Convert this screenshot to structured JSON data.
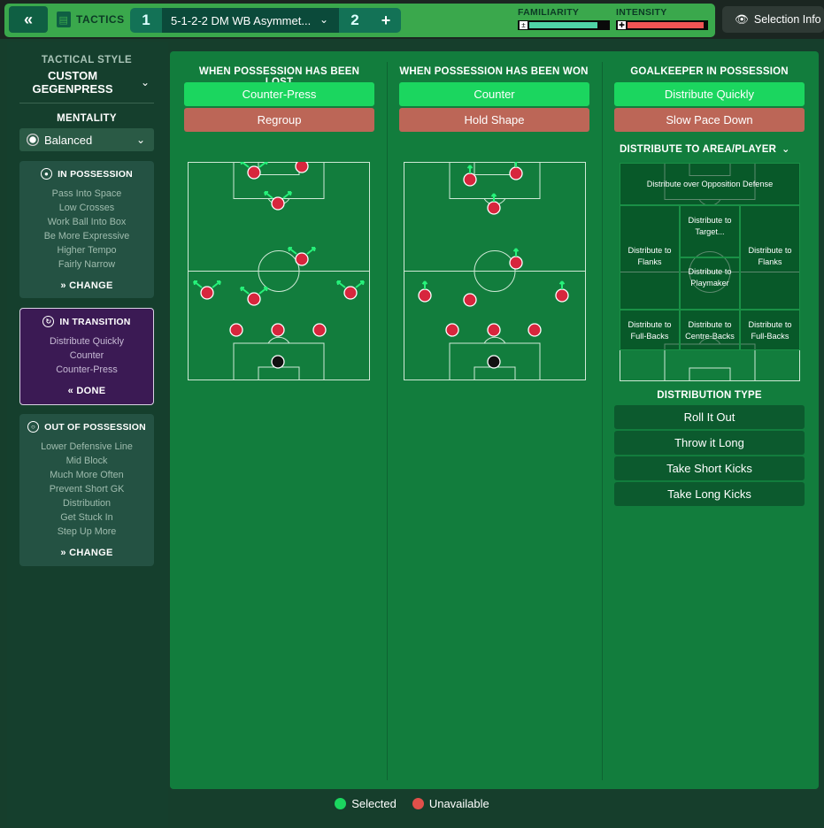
{
  "header": {
    "back_label": "«",
    "section_label": "TACTICS",
    "tab1": "1",
    "tactic_name": "5-1-2-2 DM WB Asymmet...",
    "tab2": "2",
    "add_label": "+",
    "familiarity_label": "FAMILIARITY",
    "intensity_label": "INTENSITY",
    "familiarity_level": 0.85,
    "intensity_level": 0.95,
    "selection_info": "Selection Info"
  },
  "sidebar": {
    "style_title": "TACTICAL STYLE",
    "style_name": "CUSTOM GEGENPRESS",
    "mentality_label": "MENTALITY",
    "mentality_value": "Balanced",
    "in_possession": {
      "title": "IN POSSESSION",
      "items": [
        "Pass Into Space",
        "Low Crosses",
        "Work Ball Into Box",
        "Be More Expressive",
        "Higher Tempo",
        "Fairly Narrow"
      ],
      "button": "CHANGE"
    },
    "in_transition": {
      "title": "IN TRANSITION",
      "items": [
        "Distribute Quickly",
        "Counter",
        "Counter-Press"
      ],
      "button": "DONE"
    },
    "out_of_possession": {
      "title": "OUT OF POSSESSION",
      "items": [
        "Lower Defensive Line",
        "Mid Block",
        "Much More Often",
        "Prevent Short GK",
        "Distribution",
        "Get Stuck In",
        "Step Up More"
      ],
      "button": "CHANGE"
    }
  },
  "lost": {
    "title": "WHEN POSSESSION HAS BEEN LOST",
    "opt1": "Counter-Press",
    "opt2": "Regroup"
  },
  "won": {
    "title": "WHEN POSSESSION HAS BEEN WON",
    "opt1": "Counter",
    "opt2": "Hold Shape"
  },
  "gk": {
    "title": "GOALKEEPER IN POSSESSION",
    "opt1": "Distribute Quickly",
    "opt2": "Slow Pace Down",
    "dist_title": "DISTRIBUTE TO AREA/PLAYER",
    "zones": {
      "opp": "Distribute over Opposition Defense",
      "target": "Distribute to Target...",
      "flanks_l": "Distribute to Flanks",
      "flanks_r": "Distribute to Flanks",
      "playmaker": "Distribute to Playmaker",
      "fb_l": "Distribute to Full-Backs",
      "cb": "Distribute to Centre-Backs",
      "fb_r": "Distribute to Full-Backs"
    },
    "dist_type_title": "DISTRIBUTION TYPE",
    "types": [
      "Roll It Out",
      "Throw it Long",
      "Take Short Kicks",
      "Take Long Kicks"
    ]
  },
  "legend": {
    "selected": "Selected",
    "unavailable": "Unavailable",
    "selected_color": "#1bd65f",
    "unavailable_color": "#e0504a"
  }
}
